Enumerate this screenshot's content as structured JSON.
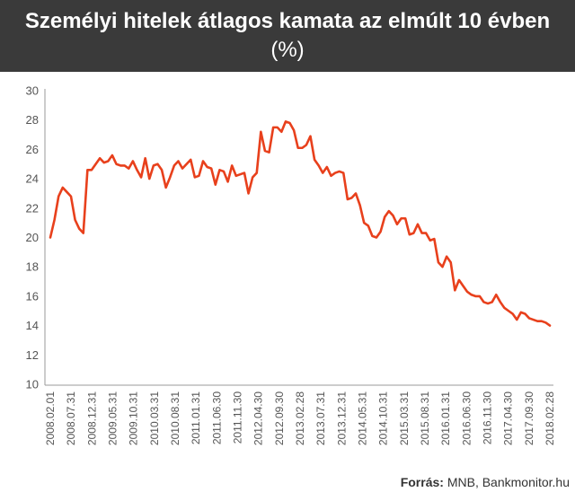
{
  "header": {
    "title": "Személyi hitelek átlagos kamata az elmúlt 10 évben",
    "unit": "(%)"
  },
  "source": {
    "label": "Forrás:",
    "text": "MNB, Bankmonitor.hu"
  },
  "colors": {
    "header_bg": "#3a3a3a",
    "line": "#e8401c",
    "axis": "#999999"
  },
  "chart_data": {
    "type": "line",
    "title": "Személyi hitelek átlagos kamata az elmúlt 10 évben",
    "unit": "%",
    "ylim": [
      10,
      30
    ],
    "yticks": [
      10,
      12,
      14,
      16,
      18,
      20,
      22,
      24,
      26,
      28,
      30
    ],
    "grid": false,
    "x_tick_labels": [
      "2008.02.01",
      "2008.07.31",
      "2008.12.31",
      "2009.05.31",
      "2009.10.31",
      "2010.03.31",
      "2010.08.31",
      "2011.01.31",
      "2011.06.30",
      "2011.11.30",
      "2012.04.30",
      "2012.09.30",
      "2013.02.28",
      "2013.07.31",
      "2013.12.31",
      "2014.05.31",
      "2014.10.31",
      "2015.03.31",
      "2015.08.31",
      "2016.01.31",
      "2016.06.30",
      "2016.11.30",
      "2017.04.30",
      "2017.09.30",
      "2018.02.28"
    ],
    "series": [
      {
        "values": [
          20.0,
          21.2,
          22.8,
          23.4,
          23.1,
          22.8,
          21.2,
          20.6,
          20.3,
          24.6,
          24.6,
          25.0,
          25.4,
          25.1,
          25.2,
          25.6,
          25.0,
          24.9,
          24.9,
          24.7,
          25.2,
          24.6,
          24.1,
          25.4,
          24.0,
          24.9,
          25.0,
          24.6,
          23.4,
          24.1,
          24.9,
          25.2,
          24.7,
          25.0,
          25.3,
          24.1,
          24.2,
          25.2,
          24.8,
          24.7,
          23.6,
          24.6,
          24.5,
          23.8,
          24.9,
          24.2,
          24.3,
          24.4,
          23.0,
          24.1,
          24.4,
          27.2,
          25.9,
          25.8,
          27.5,
          27.5,
          27.2,
          27.9,
          27.8,
          27.3,
          26.1,
          26.1,
          26.3,
          26.9,
          25.3,
          24.9,
          24.4,
          24.8,
          24.2,
          24.4,
          24.5,
          24.4,
          22.6,
          22.7,
          23.0,
          22.2,
          21.0,
          20.8,
          20.1,
          20.0,
          20.4,
          21.4,
          21.8,
          21.5,
          20.9,
          21.3,
          21.3,
          20.2,
          20.3,
          20.9,
          20.3,
          20.3,
          19.8,
          19.9,
          18.3,
          18.0,
          18.7,
          18.3,
          16.4,
          17.1,
          16.7,
          16.3,
          16.1,
          16.0,
          16.0,
          15.6,
          15.5,
          15.6,
          16.1,
          15.6,
          15.2,
          15.0,
          14.8,
          14.4,
          14.9,
          14.8,
          14.5,
          14.4,
          14.3,
          14.3,
          14.2,
          14.0
        ]
      }
    ]
  }
}
